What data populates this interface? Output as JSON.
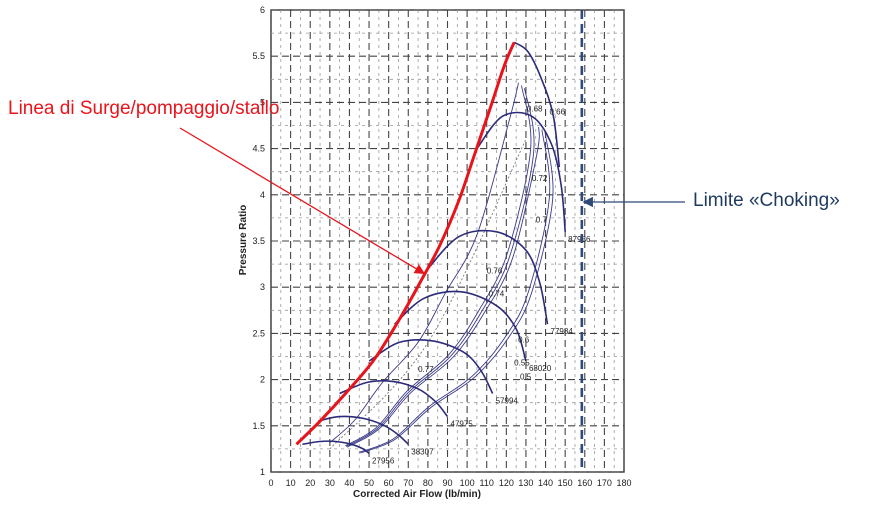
{
  "chart_data": {
    "type": "line",
    "title": "",
    "xlabel": "Corrected Air Flow (lb/min)",
    "ylabel": "Pressure Ratio",
    "xlim": [
      0,
      180
    ],
    "ylim": [
      1,
      6
    ],
    "xticks": [
      "0",
      "10",
      "20",
      "30",
      "40",
      "50",
      "60",
      "70",
      "80",
      "90",
      "100",
      "110",
      "120",
      "130",
      "140",
      "150",
      "160",
      "170",
      "180"
    ],
    "yticks": [
      "1",
      "1.5",
      "2",
      "2.5",
      "3",
      "3.5",
      "4",
      "4.5",
      "5",
      "5.5",
      "6"
    ],
    "grid": true,
    "surge_line": {
      "label": "Linea di Surge/pompaggio/stallo",
      "color": "#e8141b",
      "x": [
        13,
        25,
        38,
        52,
        64,
        76,
        86,
        96,
        104,
        112,
        119,
        124
      ],
      "y": [
        1.3,
        1.55,
        1.85,
        2.2,
        2.6,
        3.05,
        3.45,
        3.95,
        4.45,
        4.95,
        5.4,
        5.65
      ]
    },
    "choke_limit": {
      "label": "Limite «Choking»",
      "color": "#2e4a7a",
      "x": 158.5
    },
    "speed_lines": [
      {
        "label": "27956",
        "x": [
          16,
          25,
          33,
          41,
          47,
          50
        ],
        "y": [
          1.3,
          1.33,
          1.33,
          1.3,
          1.25,
          1.2
        ]
      },
      {
        "label": "38307",
        "x": [
          24,
          35,
          47,
          58,
          65,
          70
        ],
        "y": [
          1.55,
          1.6,
          1.58,
          1.5,
          1.4,
          1.3
        ]
      },
      {
        "label": "47975",
        "x": [
          35,
          49,
          62,
          75,
          84,
          90
        ],
        "y": [
          1.85,
          1.97,
          1.98,
          1.9,
          1.76,
          1.6
        ]
      },
      {
        "label": "57994",
        "x": [
          50,
          65,
          82,
          98,
          107,
          113
        ],
        "y": [
          2.2,
          2.4,
          2.42,
          2.3,
          2.1,
          1.85
        ]
      },
      {
        "label": "68020",
        "x": [
          63,
          78,
          97,
          115,
          125,
          130
        ],
        "y": [
          2.6,
          2.88,
          2.95,
          2.8,
          2.55,
          2.2
        ]
      },
      {
        "label": "77984",
        "x": [
          80,
          96,
          115,
          130,
          137,
          141
        ],
        "y": [
          3.2,
          3.55,
          3.6,
          3.4,
          3.05,
          2.6
        ]
      },
      {
        "label": "87986",
        "x": [
          105,
          118,
          133,
          143,
          148,
          150
        ],
        "y": [
          4.5,
          4.85,
          4.85,
          4.55,
          4.1,
          3.6
        ]
      },
      {
        "label": "",
        "x": [
          124,
          131,
          138,
          144,
          147
        ],
        "y": [
          5.65,
          5.55,
          5.25,
          4.85,
          4.3
        ]
      }
    ],
    "efficiency_labels": [
      {
        "text": "0.68",
        "x": 130.5,
        "y": 4.9
      },
      {
        "text": "0.66",
        "x": 142,
        "y": 4.87
      },
      {
        "text": "0.72",
        "x": 133,
        "y": 4.15
      },
      {
        "text": "0.7",
        "x": 135,
        "y": 3.7
      },
      {
        "text": "0.76",
        "x": 110,
        "y": 3.15
      },
      {
        "text": "0.74",
        "x": 111,
        "y": 2.9
      },
      {
        "text": "0.6",
        "x": 126,
        "y": 2.4
      },
      {
        "text": "0.55",
        "x": 124,
        "y": 2.15
      },
      {
        "text": "0.5",
        "x": 127,
        "y": 2.0
      },
      {
        "text": "0.77",
        "x": 75,
        "y": 2.08
      }
    ]
  }
}
